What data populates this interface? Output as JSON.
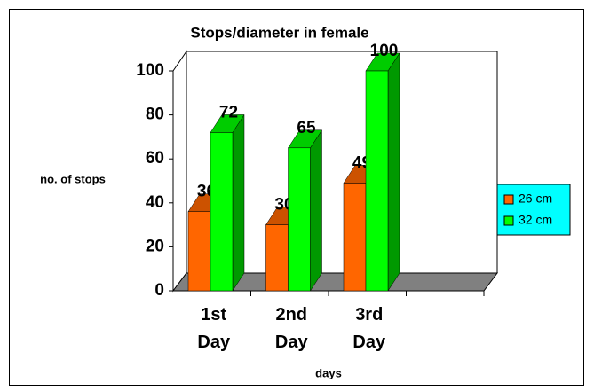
{
  "chart_data": {
    "type": "bar3d",
    "title": "Stops/diameter in female",
    "categories": [
      "1st Day",
      "2nd Day",
      "3rd Day",
      null
    ],
    "series": [
      {
        "name": "26 cm",
        "color": "#ff6600",
        "values": [
          36,
          30,
          49,
          null
        ]
      },
      {
        "name": "32 cm",
        "color": "#00ff00",
        "values": [
          72,
          65,
          100,
          null
        ]
      }
    ],
    "ylim": [
      0,
      100
    ],
    "yticks": [
      0,
      20,
      40,
      60,
      80,
      100
    ],
    "y_label": "no. of stops",
    "x_label": "days",
    "legend": "right"
  }
}
